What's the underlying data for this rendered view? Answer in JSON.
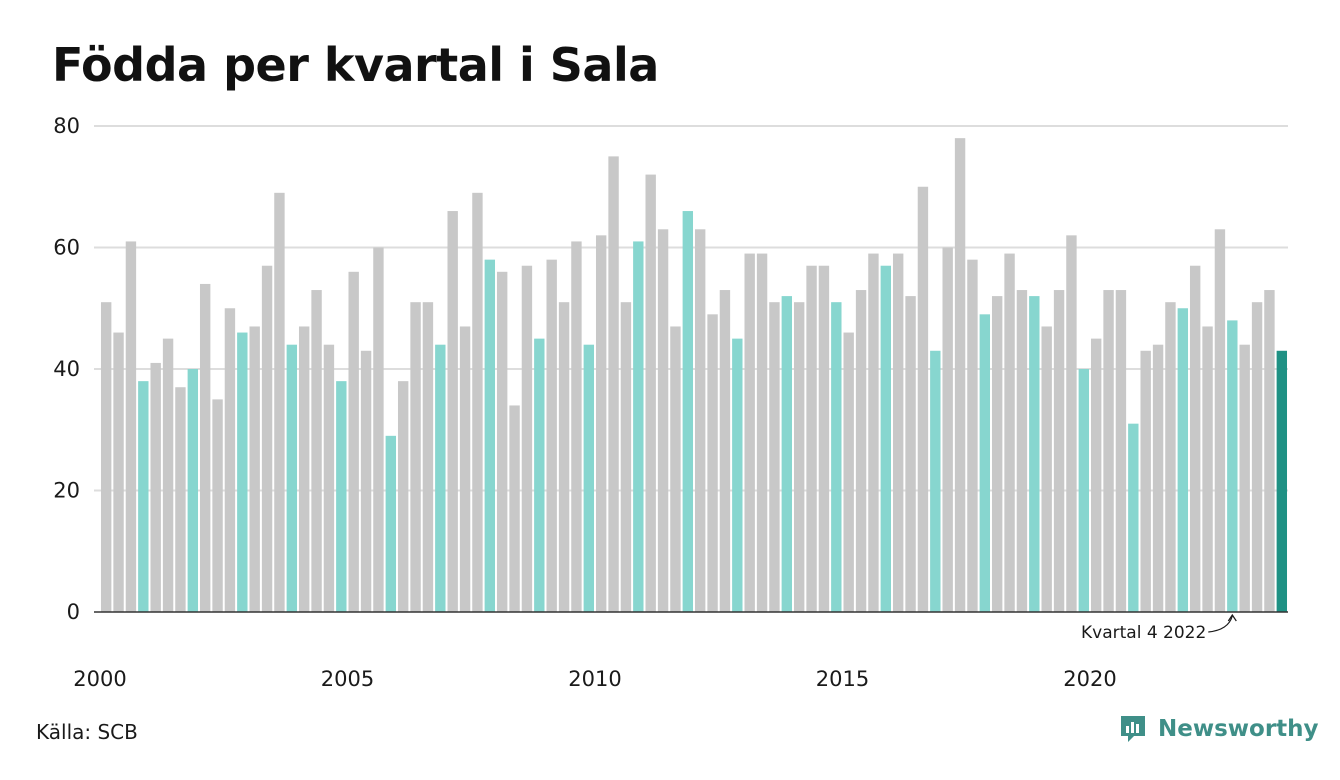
{
  "title": "Födda per kvartal i Sala",
  "source": "Källa: SCB",
  "brand": {
    "name": "Newsworthy",
    "icon": "newsworthy-logo-icon",
    "color": "#3f8f88"
  },
  "colors": {
    "regular": "#c8c8c8",
    "highlight": "#87d6cf",
    "latest": "#1f9184",
    "gridline": "#dddddd"
  },
  "chart_data": {
    "type": "bar",
    "title": "Födda per kvartal i Sala",
    "start_year": 2000,
    "start_quarter": 1,
    "x_tick_labels": [
      "2000",
      "2005",
      "2010",
      "2015",
      "2020"
    ],
    "y_ticks": [
      0,
      20,
      40,
      60,
      80
    ],
    "ylim": [
      0,
      80
    ],
    "grid": true,
    "highlight_rule": "quarter 4 bars highlighted; latest bar emphasized",
    "values": [
      51,
      46,
      61,
      38,
      41,
      45,
      37,
      40,
      54,
      35,
      50,
      46,
      47,
      57,
      69,
      44,
      47,
      53,
      44,
      38,
      56,
      43,
      60,
      29,
      38,
      51,
      51,
      44,
      66,
      47,
      69,
      58,
      56,
      34,
      57,
      45,
      58,
      51,
      61,
      44,
      62,
      75,
      51,
      61,
      72,
      63,
      47,
      66,
      63,
      49,
      53,
      45,
      59,
      59,
      51,
      52,
      51,
      57,
      57,
      51,
      46,
      53,
      59,
      57,
      59,
      52,
      70,
      43,
      60,
      78,
      58,
      49,
      52,
      59,
      53,
      52,
      47,
      53,
      62,
      40,
      45,
      53,
      53,
      31,
      43,
      44,
      51,
      50,
      57,
      47,
      63,
      48,
      44,
      51,
      53,
      43
    ],
    "annotation": {
      "text": "Kvartal 4 2022",
      "quarter": "2022 Q4"
    }
  }
}
